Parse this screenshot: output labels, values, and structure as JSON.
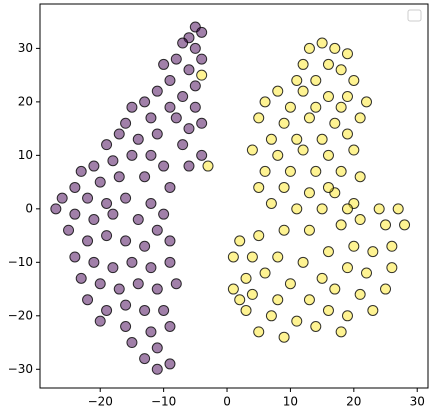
{
  "chart_data": {
    "type": "scatter",
    "xlim": [
      -29.5,
      31.7
    ],
    "ylim": [
      -33.5,
      38.3
    ],
    "xticks": [
      {
        "value": -20,
        "label": "−20"
      },
      {
        "value": -10,
        "label": "−10"
      },
      0,
      10,
      20,
      30
    ],
    "yticks": [
      {
        "value": -30,
        "label": "−30"
      },
      {
        "value": -20,
        "label": "−20"
      },
      {
        "value": -10,
        "label": "−10"
      },
      0,
      10,
      20,
      30
    ],
    "legend": "upper right",
    "series": [
      {
        "color": "#440154",
        "x": [
          -5,
          -4,
          -6,
          -5,
          -7,
          -4,
          -8,
          -6,
          -10,
          -9,
          -5,
          -7,
          -11,
          -13,
          -15,
          -9,
          -5,
          -4,
          -6,
          -8,
          -12,
          -16,
          -17,
          -19,
          -14,
          -11,
          -7,
          -4,
          -6,
          -12,
          -15,
          -18,
          -21,
          -23,
          -20,
          -17,
          -13,
          -10,
          -9,
          -24,
          -26,
          -22,
          -19,
          -16,
          -12,
          -27,
          -24,
          -21,
          -18,
          -14,
          -10,
          -11,
          -25,
          -22,
          -19,
          -16,
          -13,
          -9,
          -24,
          -21,
          -18,
          -15,
          -12,
          -9,
          -23,
          -20,
          -17,
          -14,
          -11,
          -8,
          -22,
          -19,
          -16,
          -13,
          -10,
          -20,
          -16,
          -12,
          -9,
          -15,
          -11,
          -13,
          -9,
          -11
        ],
        "values": [
          34,
          33,
          32,
          30,
          31,
          28,
          28,
          26,
          27,
          24,
          23,
          21,
          22,
          20,
          19,
          19,
          19,
          16,
          15,
          17,
          17,
          16,
          14,
          12,
          13,
          14,
          12,
          10,
          8,
          10,
          10,
          9,
          8,
          7,
          5,
          6,
          6,
          8,
          4,
          4,
          2,
          2,
          1,
          2,
          1,
          0,
          -1,
          -2,
          -1,
          -2,
          -1,
          -4,
          -4,
          -6,
          -5,
          -6,
          -7,
          -6,
          -9,
          -10,
          -11,
          -10,
          -11,
          -10,
          -13,
          -14,
          -15,
          -14,
          -15,
          -14,
          -17,
          -19,
          -18,
          -19,
          -19,
          -21,
          -22,
          -23,
          -22,
          -25,
          -26,
          -28,
          -29,
          -30
        ]
      },
      {
        "color": "#fde725",
        "x": [
          13,
          15,
          17,
          19,
          12,
          16,
          18,
          11,
          14,
          20,
          8,
          12,
          16,
          19,
          6,
          10,
          14,
          18,
          22,
          5,
          9,
          13,
          17,
          21,
          7,
          11,
          15,
          19,
          4,
          8,
          12,
          16,
          20,
          6,
          10,
          14,
          18,
          21,
          5,
          9,
          13,
          17,
          20,
          7,
          11,
          15,
          19,
          24,
          27,
          2,
          5,
          9,
          13,
          18,
          21,
          25,
          28,
          1,
          4,
          8,
          12,
          16,
          20,
          23,
          26,
          3,
          6,
          10,
          15,
          19,
          22,
          26,
          1,
          4,
          8,
          13,
          17,
          21,
          25,
          3,
          7,
          11,
          16,
          19,
          23,
          5,
          9,
          14,
          18,
          2,
          16,
          -4,
          -3
        ],
        "values": [
          30,
          31,
          30,
          29,
          27,
          27,
          26,
          24,
          24,
          24,
          22,
          22,
          21,
          21,
          20,
          19,
          19,
          19,
          20,
          17,
          16,
          17,
          16,
          17,
          13,
          13,
          13,
          14,
          11,
          10,
          11,
          10,
          11,
          7,
          7,
          7,
          7,
          6,
          4,
          4,
          3,
          3,
          1,
          1,
          0,
          0,
          0,
          0,
          0,
          -6,
          -5,
          -4,
          -4,
          -3,
          -2,
          -3,
          -3,
          -9,
          -9,
          -9,
          -10,
          -8,
          -7,
          -8,
          -7,
          -13,
          -12,
          -14,
          -13,
          -11,
          -12,
          -11,
          -15,
          -16,
          -17,
          -17,
          -15,
          -16,
          -15,
          -19,
          -20,
          -21,
          -19,
          -20,
          -19,
          -23,
          -24,
          -22,
          -23,
          -17,
          4,
          25,
          8
        ]
      }
    ]
  }
}
